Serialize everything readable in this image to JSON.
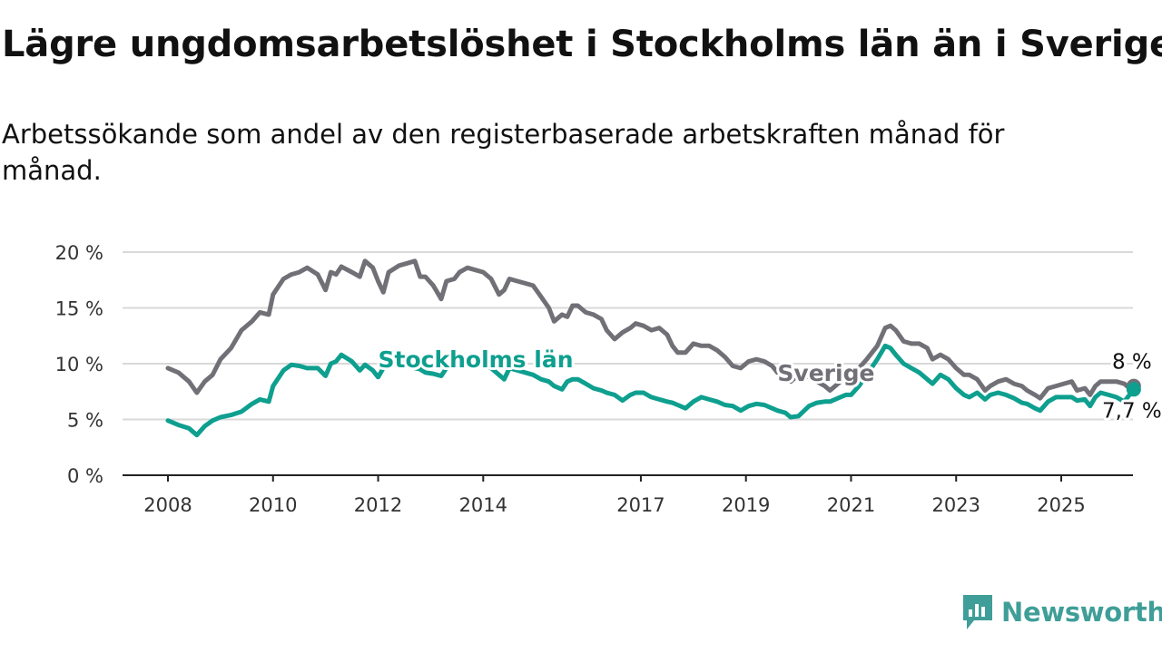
{
  "title": "Lägre ungdomsarbetslöshet i Stockholms län än i Sverige",
  "subtitle": "Arbetssökande som andel av den registerbaserade arbetskraften månad för månad.",
  "brand": {
    "name": "Newsworthy",
    "color": "#3f9e98"
  },
  "chart_data": {
    "type": "line",
    "ylim": [
      0,
      20
    ],
    "xlim": [
      2008,
      2026.4
    ],
    "y_ticks": [
      0,
      5,
      10,
      15,
      20
    ],
    "y_tick_labels": [
      "0 %",
      "5 %",
      "10 %",
      "15 %",
      "20 %"
    ],
    "x_ticks": [
      2008,
      2010,
      2012,
      2014,
      2017,
      2019,
      2021,
      2023,
      2025
    ],
    "x_tick_labels": [
      "2008",
      "2010",
      "2012",
      "2014",
      "2017",
      "2019",
      "2021",
      "2023",
      "2025"
    ],
    "grid": true,
    "series": [
      {
        "name": "Sverige",
        "color": "#717077",
        "last_value_label": "8 %",
        "points": [
          [
            2008.0,
            9.6
          ],
          [
            2008.2,
            9.2
          ],
          [
            2008.4,
            8.4
          ],
          [
            2008.55,
            7.4
          ],
          [
            2008.7,
            8.4
          ],
          [
            2008.85,
            9.0
          ],
          [
            2009.0,
            10.4
          ],
          [
            2009.2,
            11.4
          ],
          [
            2009.4,
            13.0
          ],
          [
            2009.6,
            13.8
          ],
          [
            2009.75,
            14.6
          ],
          [
            2009.92,
            14.4
          ],
          [
            2010.0,
            16.2
          ],
          [
            2010.2,
            17.6
          ],
          [
            2010.35,
            18.0
          ],
          [
            2010.5,
            18.2
          ],
          [
            2010.65,
            18.6
          ],
          [
            2010.85,
            18.0
          ],
          [
            2011.0,
            16.6
          ],
          [
            2011.1,
            18.2
          ],
          [
            2011.2,
            18.0
          ],
          [
            2011.3,
            18.7
          ],
          [
            2011.5,
            18.2
          ],
          [
            2011.65,
            17.8
          ],
          [
            2011.75,
            19.2
          ],
          [
            2011.9,
            18.6
          ],
          [
            2012.0,
            17.4
          ],
          [
            2012.1,
            16.4
          ],
          [
            2012.2,
            18.2
          ],
          [
            2012.4,
            18.8
          ],
          [
            2012.55,
            19.0
          ],
          [
            2012.7,
            19.2
          ],
          [
            2012.8,
            17.8
          ],
          [
            2012.9,
            17.8
          ],
          [
            2013.05,
            17.0
          ],
          [
            2013.2,
            15.8
          ],
          [
            2013.3,
            17.4
          ],
          [
            2013.45,
            17.6
          ],
          [
            2013.55,
            18.2
          ],
          [
            2013.7,
            18.6
          ],
          [
            2013.85,
            18.4
          ],
          [
            2014.0,
            18.2
          ],
          [
            2014.15,
            17.6
          ],
          [
            2014.3,
            16.2
          ],
          [
            2014.4,
            16.6
          ],
          [
            2014.5,
            17.6
          ],
          [
            2014.65,
            17.4
          ],
          [
            2014.8,
            17.2
          ],
          [
            2014.95,
            17.0
          ],
          [
            2015.1,
            16.0
          ],
          [
            2015.25,
            15.0
          ],
          [
            2015.35,
            13.8
          ],
          [
            2015.5,
            14.4
          ],
          [
            2015.6,
            14.2
          ],
          [
            2015.7,
            15.2
          ],
          [
            2015.8,
            15.2
          ],
          [
            2015.95,
            14.6
          ],
          [
            2016.1,
            14.4
          ],
          [
            2016.25,
            14.0
          ],
          [
            2016.35,
            13.0
          ],
          [
            2016.5,
            12.2
          ],
          [
            2016.65,
            12.8
          ],
          [
            2016.8,
            13.2
          ],
          [
            2016.9,
            13.6
          ],
          [
            2017.05,
            13.4
          ],
          [
            2017.2,
            13.0
          ],
          [
            2017.35,
            13.2
          ],
          [
            2017.5,
            12.6
          ],
          [
            2017.6,
            11.6
          ],
          [
            2017.7,
            11.0
          ],
          [
            2017.85,
            11.0
          ],
          [
            2018.0,
            11.8
          ],
          [
            2018.15,
            11.6
          ],
          [
            2018.3,
            11.6
          ],
          [
            2018.45,
            11.2
          ],
          [
            2018.6,
            10.6
          ],
          [
            2018.75,
            9.8
          ],
          [
            2018.9,
            9.6
          ],
          [
            2019.05,
            10.2
          ],
          [
            2019.2,
            10.4
          ],
          [
            2019.35,
            10.2
          ],
          [
            2019.5,
            9.8
          ],
          [
            2019.6,
            9.2
          ],
          [
            2019.75,
            8.8
          ],
          [
            2019.85,
            8.4
          ],
          [
            2020.0,
            9.0
          ],
          [
            2020.2,
            8.8
          ],
          [
            2020.35,
            8.4
          ],
          [
            2020.5,
            8.0
          ],
          [
            2020.6,
            7.6
          ],
          [
            2020.75,
            8.2
          ],
          [
            2020.9,
            8.8
          ],
          [
            2021.0,
            8.6
          ],
          [
            2021.15,
            9.6
          ],
          [
            2021.3,
            10.4
          ],
          [
            2021.5,
            11.6
          ],
          [
            2021.65,
            13.2
          ],
          [
            2021.75,
            13.4
          ],
          [
            2021.85,
            13.0
          ],
          [
            2022.0,
            12.0
          ],
          [
            2022.15,
            11.8
          ],
          [
            2022.3,
            11.8
          ],
          [
            2022.45,
            11.4
          ],
          [
            2022.55,
            10.4
          ],
          [
            2022.7,
            10.8
          ],
          [
            2022.85,
            10.4
          ],
          [
            2023.0,
            9.6
          ],
          [
            2023.15,
            9.0
          ],
          [
            2023.25,
            9.0
          ],
          [
            2023.4,
            8.6
          ],
          [
            2023.55,
            7.6
          ],
          [
            2023.65,
            8.0
          ],
          [
            2023.8,
            8.4
          ],
          [
            2023.95,
            8.6
          ],
          [
            2024.1,
            8.2
          ],
          [
            2024.25,
            8.0
          ],
          [
            2024.35,
            7.6
          ],
          [
            2024.5,
            7.2
          ],
          [
            2024.6,
            6.9
          ],
          [
            2024.75,
            7.8
          ],
          [
            2024.9,
            8.0
          ],
          [
            2025.05,
            8.2
          ],
          [
            2025.2,
            8.4
          ],
          [
            2025.3,
            7.6
          ],
          [
            2025.45,
            7.8
          ],
          [
            2025.55,
            7.2
          ],
          [
            2025.65,
            8.0
          ],
          [
            2025.75,
            8.4
          ],
          [
            2025.9,
            8.4
          ],
          [
            2026.05,
            8.4
          ],
          [
            2026.2,
            8.2
          ],
          [
            2026.3,
            7.8
          ],
          [
            2026.38,
            8.0
          ]
        ]
      },
      {
        "name": "Stockholms län",
        "color": "#0e9f8f",
        "last_value_label": "7,7 %",
        "points": [
          [
            2008.0,
            4.9
          ],
          [
            2008.2,
            4.5
          ],
          [
            2008.4,
            4.2
          ],
          [
            2008.55,
            3.6
          ],
          [
            2008.7,
            4.4
          ],
          [
            2008.85,
            4.9
          ],
          [
            2009.0,
            5.2
          ],
          [
            2009.2,
            5.4
          ],
          [
            2009.4,
            5.7
          ],
          [
            2009.6,
            6.4
          ],
          [
            2009.75,
            6.8
          ],
          [
            2009.92,
            6.6
          ],
          [
            2010.0,
            8.0
          ],
          [
            2010.2,
            9.4
          ],
          [
            2010.35,
            9.9
          ],
          [
            2010.5,
            9.8
          ],
          [
            2010.65,
            9.6
          ],
          [
            2010.85,
            9.6
          ],
          [
            2011.0,
            8.9
          ],
          [
            2011.1,
            10.0
          ],
          [
            2011.2,
            10.2
          ],
          [
            2011.3,
            10.8
          ],
          [
            2011.5,
            10.2
          ],
          [
            2011.65,
            9.4
          ],
          [
            2011.75,
            9.9
          ],
          [
            2011.9,
            9.4
          ],
          [
            2012.0,
            8.8
          ],
          [
            2012.1,
            9.6
          ],
          [
            2012.2,
            10.0
          ],
          [
            2012.4,
            10.4
          ],
          [
            2012.55,
            10.1
          ],
          [
            2012.7,
            9.6
          ],
          [
            2012.8,
            9.5
          ],
          [
            2012.9,
            9.2
          ],
          [
            2013.05,
            9.1
          ],
          [
            2013.2,
            8.9
          ],
          [
            2013.3,
            9.6
          ],
          [
            2013.45,
            9.8
          ],
          [
            2013.55,
            10.0
          ],
          [
            2013.7,
            10.4
          ],
          [
            2013.85,
            10.2
          ],
          [
            2014.0,
            9.8
          ],
          [
            2014.15,
            9.6
          ],
          [
            2014.3,
            9.0
          ],
          [
            2014.4,
            8.6
          ],
          [
            2014.5,
            9.6
          ],
          [
            2014.65,
            9.4
          ],
          [
            2014.8,
            9.2
          ],
          [
            2014.95,
            9.0
          ],
          [
            2015.1,
            8.6
          ],
          [
            2015.25,
            8.4
          ],
          [
            2015.35,
            8.0
          ],
          [
            2015.5,
            7.7
          ],
          [
            2015.6,
            8.4
          ],
          [
            2015.7,
            8.6
          ],
          [
            2015.8,
            8.6
          ],
          [
            2015.95,
            8.2
          ],
          [
            2016.1,
            7.8
          ],
          [
            2016.25,
            7.6
          ],
          [
            2016.35,
            7.4
          ],
          [
            2016.5,
            7.2
          ],
          [
            2016.65,
            6.7
          ],
          [
            2016.8,
            7.2
          ],
          [
            2016.9,
            7.4
          ],
          [
            2017.05,
            7.4
          ],
          [
            2017.2,
            7.0
          ],
          [
            2017.35,
            6.8
          ],
          [
            2017.5,
            6.6
          ],
          [
            2017.6,
            6.5
          ],
          [
            2017.7,
            6.3
          ],
          [
            2017.85,
            6.0
          ],
          [
            2018.0,
            6.6
          ],
          [
            2018.15,
            7.0
          ],
          [
            2018.3,
            6.8
          ],
          [
            2018.45,
            6.6
          ],
          [
            2018.6,
            6.3
          ],
          [
            2018.75,
            6.2
          ],
          [
            2018.9,
            5.8
          ],
          [
            2019.05,
            6.2
          ],
          [
            2019.2,
            6.4
          ],
          [
            2019.35,
            6.3
          ],
          [
            2019.5,
            6.0
          ],
          [
            2019.6,
            5.8
          ],
          [
            2019.75,
            5.6
          ],
          [
            2019.85,
            5.2
          ],
          [
            2020.0,
            5.3
          ],
          [
            2020.2,
            6.2
          ],
          [
            2020.35,
            6.5
          ],
          [
            2020.5,
            6.6
          ],
          [
            2020.6,
            6.6
          ],
          [
            2020.75,
            6.9
          ],
          [
            2020.9,
            7.2
          ],
          [
            2021.0,
            7.2
          ],
          [
            2021.15,
            8.0
          ],
          [
            2021.3,
            9.0
          ],
          [
            2021.5,
            10.4
          ],
          [
            2021.65,
            11.6
          ],
          [
            2021.75,
            11.4
          ],
          [
            2021.85,
            10.8
          ],
          [
            2022.0,
            10.0
          ],
          [
            2022.15,
            9.6
          ],
          [
            2022.3,
            9.2
          ],
          [
            2022.45,
            8.6
          ],
          [
            2022.55,
            8.2
          ],
          [
            2022.7,
            9.0
          ],
          [
            2022.85,
            8.6
          ],
          [
            2023.0,
            7.8
          ],
          [
            2023.15,
            7.2
          ],
          [
            2023.25,
            7.0
          ],
          [
            2023.4,
            7.4
          ],
          [
            2023.55,
            6.8
          ],
          [
            2023.65,
            7.2
          ],
          [
            2023.8,
            7.4
          ],
          [
            2023.95,
            7.2
          ],
          [
            2024.1,
            6.9
          ],
          [
            2024.25,
            6.5
          ],
          [
            2024.35,
            6.4
          ],
          [
            2024.5,
            6.0
          ],
          [
            2024.6,
            5.8
          ],
          [
            2024.75,
            6.6
          ],
          [
            2024.9,
            7.0
          ],
          [
            2025.05,
            7.0
          ],
          [
            2025.2,
            7.0
          ],
          [
            2025.3,
            6.7
          ],
          [
            2025.45,
            6.8
          ],
          [
            2025.55,
            6.2
          ],
          [
            2025.65,
            7.0
          ],
          [
            2025.75,
            7.4
          ],
          [
            2025.9,
            7.2
          ],
          [
            2026.05,
            7.0
          ],
          [
            2026.2,
            6.6
          ],
          [
            2026.3,
            7.2
          ],
          [
            2026.38,
            7.7
          ]
        ]
      }
    ]
  }
}
